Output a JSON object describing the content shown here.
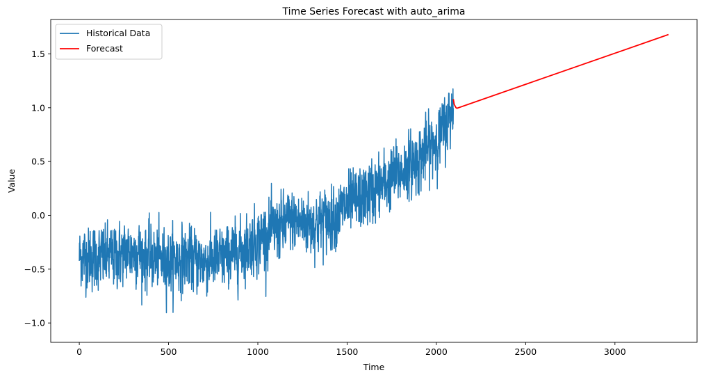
{
  "chart_data": {
    "type": "line",
    "title": "Time Series Forecast with auto_arima",
    "xlabel": "Time",
    "ylabel": "Value",
    "xlim": [
      -160,
      3460
    ],
    "ylim": [
      -1.18,
      1.82
    ],
    "xticks": [
      0,
      500,
      1000,
      1500,
      2000,
      2500,
      3000
    ],
    "yticks": [
      -1.0,
      -0.5,
      0.0,
      0.5,
      1.0,
      1.5
    ],
    "xtick_labels": [
      "0",
      "500",
      "1000",
      "1500",
      "2000",
      "2500",
      "3000"
    ],
    "ytick_labels": [
      "−1.0",
      "−0.5",
      "0.0",
      "0.5",
      "1.0",
      "1.5"
    ],
    "grid": false,
    "legend_position": "top-left",
    "series": [
      {
        "name": "Historical Data",
        "color": "#1f77b4",
        "trend": {
          "x": [
            0,
            100,
            200,
            300,
            400,
            500,
            600,
            700,
            800,
            900,
            1000,
            1100,
            1200,
            1300,
            1400,
            1500,
            1600,
            1700,
            1800,
            1900,
            2000,
            2050,
            2080,
            2095
          ],
          "y": [
            -0.38,
            -0.4,
            -0.38,
            -0.33,
            -0.4,
            -0.42,
            -0.4,
            -0.43,
            -0.4,
            -0.33,
            -0.23,
            -0.13,
            -0.05,
            -0.08,
            -0.03,
            0.08,
            0.18,
            0.28,
            0.4,
            0.52,
            0.7,
            0.82,
            0.95,
            1.05
          ]
        },
        "y_min_observed": -1.04,
        "y_max_observed": 1.35
      },
      {
        "name": "Forecast",
        "color": "#ff0000",
        "x": [
          2095,
          2100,
          2110,
          2115,
          3300
        ],
        "y": [
          1.08,
          1.03,
          1.0,
          0.995,
          1.68
        ]
      }
    ]
  },
  "legend": {
    "historical_label": "Historical Data",
    "forecast_label": "Forecast"
  }
}
